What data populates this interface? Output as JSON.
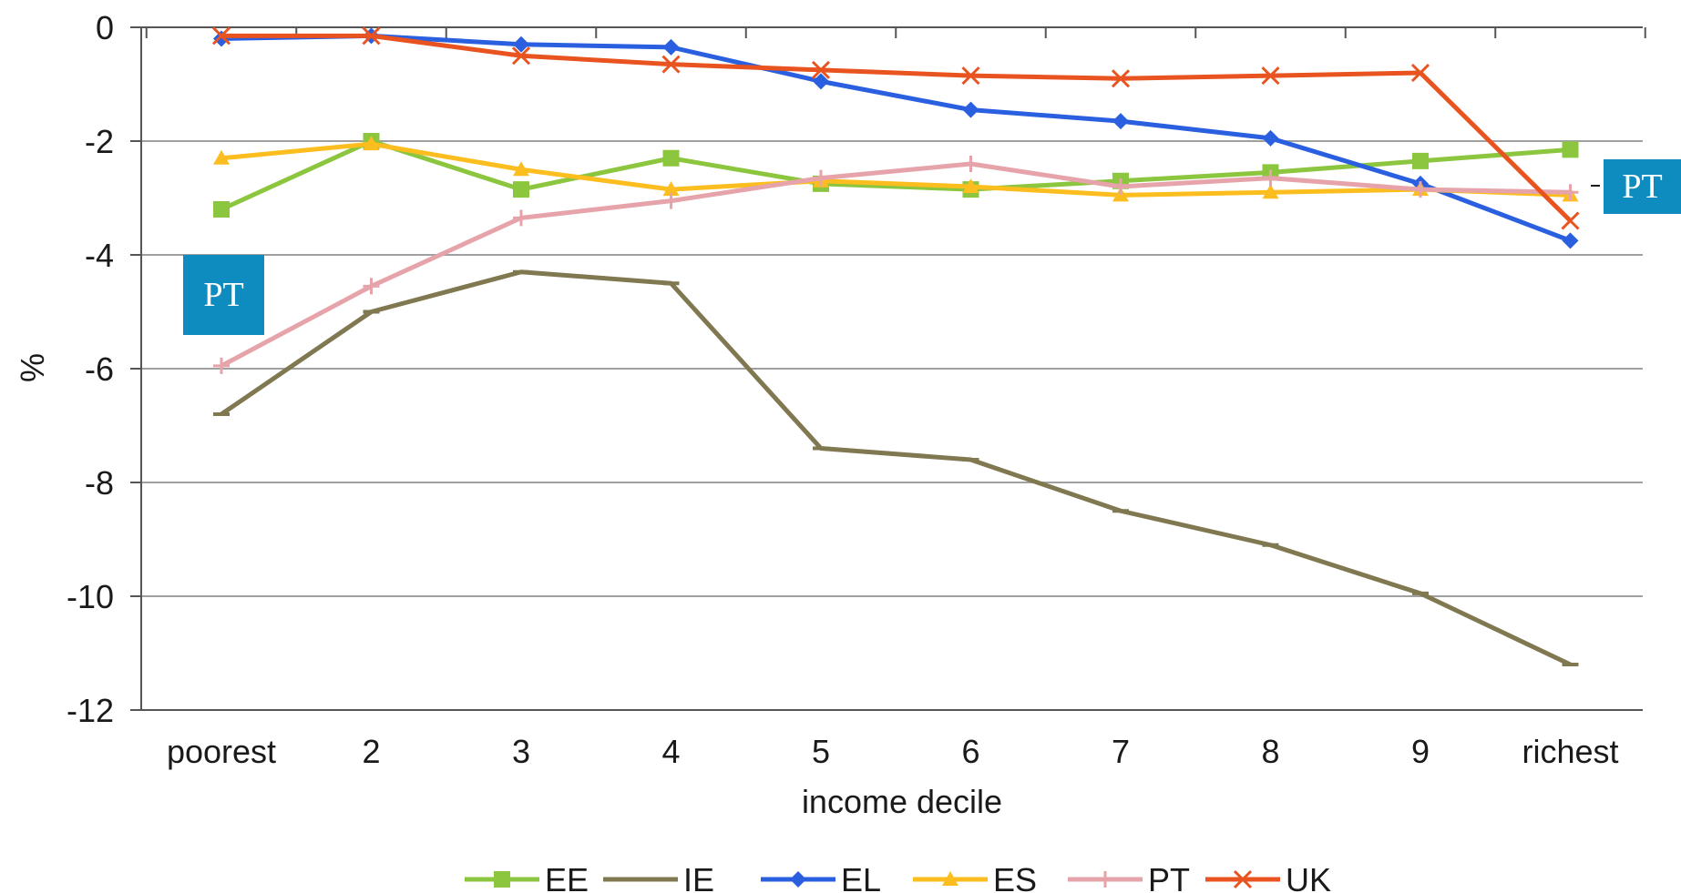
{
  "chart_data": {
    "type": "line",
    "xlabel": "income decile",
    "ylabel": "%",
    "ylim": [
      -12,
      0
    ],
    "yticks": [
      0,
      -2,
      -4,
      -6,
      -8,
      -10,
      -12
    ],
    "categories": [
      "poorest",
      "2",
      "3",
      "4",
      "5",
      "6",
      "7",
      "8",
      "9",
      "richest"
    ],
    "grid": "horizontal",
    "legend_position": "bottom",
    "series": [
      {
        "name": "EE",
        "color": "#8cc63f",
        "marker": "square",
        "values": [
          -3.2,
          -2.0,
          -2.85,
          -2.3,
          -2.75,
          -2.85,
          -2.7,
          -2.55,
          -2.35,
          -2.15
        ]
      },
      {
        "name": "IE",
        "color": "#807850",
        "marker": "dash",
        "values": [
          -6.8,
          -5.0,
          -4.3,
          -4.5,
          -7.4,
          -7.6,
          -8.5,
          -9.1,
          -9.95,
          -11.2
        ]
      },
      {
        "name": "EL",
        "color": "#2a5fe0",
        "marker": "diamond",
        "values": [
          -0.2,
          -0.15,
          -0.3,
          -0.35,
          -0.95,
          -1.45,
          -1.65,
          -1.95,
          -2.75,
          -3.75
        ]
      },
      {
        "name": "ES",
        "color": "#fcbd1e",
        "marker": "triangle",
        "values": [
          -2.3,
          -2.05,
          -2.5,
          -2.85,
          -2.7,
          -2.8,
          -2.95,
          -2.9,
          -2.85,
          -2.95
        ]
      },
      {
        "name": "PT",
        "color": "#e6a3aa",
        "marker": "plus",
        "values": [
          -5.95,
          -4.55,
          -3.35,
          -3.05,
          -2.65,
          -2.4,
          -2.8,
          -2.65,
          -2.85,
          -2.9
        ]
      },
      {
        "name": "UK",
        "color": "#e8531f",
        "marker": "x",
        "values": [
          -0.15,
          -0.15,
          -0.5,
          -0.65,
          -0.75,
          -0.85,
          -0.9,
          -0.85,
          -0.8,
          -3.4
        ]
      }
    ]
  },
  "callouts": {
    "left_label": "PT",
    "right_label": "PT"
  }
}
